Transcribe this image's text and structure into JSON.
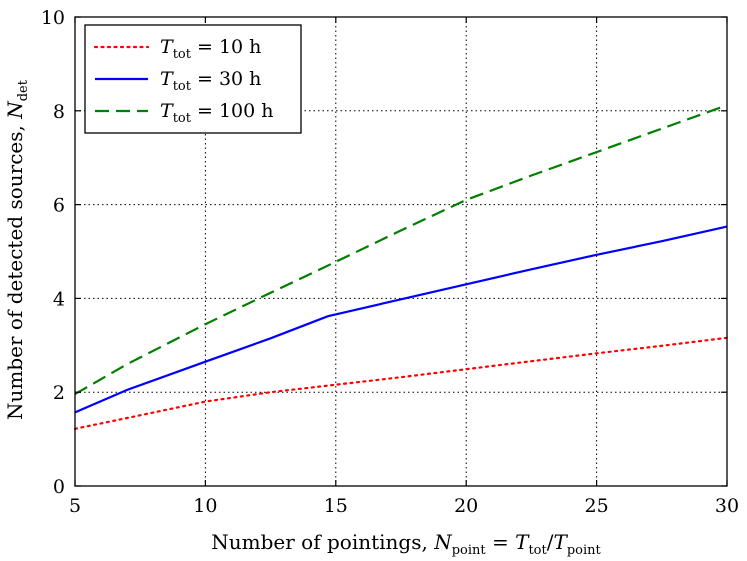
{
  "chart_data": {
    "type": "line",
    "title": "",
    "xlabel": {
      "prefix": "Number of pointings, ",
      "lhs_var": "N",
      "lhs_sub": "point",
      "eq": " = ",
      "num_var": "T",
      "num_sub": "tot",
      "slash": "/",
      "den_var": "T",
      "den_sub": "point"
    },
    "ylabel": {
      "prefix": "Number of detected sources, ",
      "var": "N",
      "sub": "det"
    },
    "xlim": [
      5,
      30
    ],
    "ylim": [
      0,
      10
    ],
    "xticks": [
      5,
      10,
      15,
      20,
      25,
      30
    ],
    "yticks": [
      0,
      2,
      4,
      6,
      8,
      10
    ],
    "grid": true,
    "legend_position": "top-left",
    "series": [
      {
        "name": "T_tot = 10 h",
        "legend": {
          "var": "T",
          "sub": "tot",
          "rest": " = 10 h"
        },
        "color": "#ff0000",
        "style": "dotted",
        "x": [
          5,
          7,
          10,
          12.5,
          15,
          17.5,
          20,
          22.5,
          25,
          27.5,
          30
        ],
        "y": [
          1.22,
          1.45,
          1.8,
          2.0,
          2.16,
          2.32,
          2.49,
          2.66,
          2.83,
          2.99,
          3.16
        ]
      },
      {
        "name": "T_tot = 30 h",
        "legend": {
          "var": "T",
          "sub": "tot",
          "rest": " = 30 h"
        },
        "color": "#0000ff",
        "style": "solid",
        "x": [
          5,
          7,
          10,
          12.5,
          14.7,
          17.5,
          20,
          22.5,
          25,
          27.5,
          30
        ],
        "y": [
          1.57,
          2.05,
          2.65,
          3.15,
          3.62,
          3.98,
          4.3,
          4.62,
          4.93,
          5.22,
          5.53
        ]
      },
      {
        "name": "T_tot = 100 h",
        "legend": {
          "var": "T",
          "sub": "tot",
          "rest": " = 100 h"
        },
        "color": "#008000",
        "style": "dashed",
        "x": [
          5,
          7,
          10,
          12.5,
          15,
          17.5,
          20,
          22.5,
          25,
          27.5,
          30
        ],
        "y": [
          1.96,
          2.6,
          3.45,
          4.12,
          4.78,
          5.45,
          6.1,
          6.62,
          7.12,
          7.62,
          8.12
        ]
      }
    ]
  }
}
